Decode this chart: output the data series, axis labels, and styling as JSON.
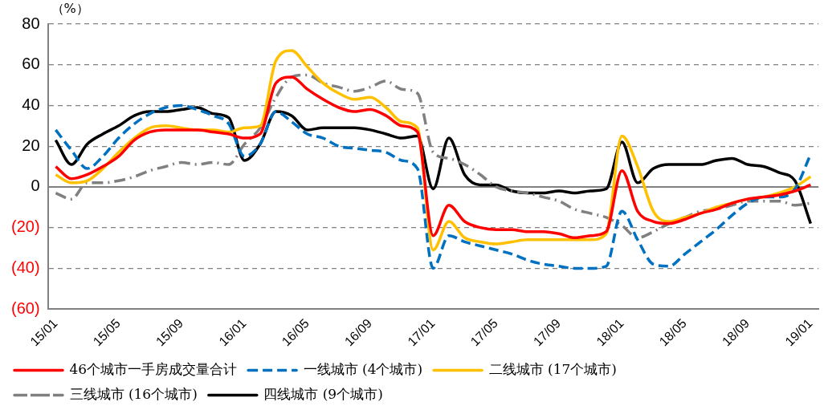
{
  "chart_data": {
    "type": "line",
    "ylabel": "（%）",
    "categories": [
      "15/01",
      null,
      null,
      null,
      "15/05",
      null,
      null,
      null,
      "15/09",
      null,
      null,
      null,
      "16/01",
      null,
      null,
      null,
      "16/05",
      null,
      null,
      null,
      "16/09",
      null,
      null,
      null,
      "17/01",
      null,
      null,
      null,
      "17/05",
      null,
      null,
      null,
      "17/09",
      null,
      null,
      null,
      "18/01",
      null,
      null,
      null,
      "18/05",
      null,
      null,
      null,
      "18/09",
      null,
      null,
      null,
      "19/01"
    ],
    "ylim": [
      -60,
      80
    ],
    "yticks": [
      {
        "value": -60,
        "label": "(60)"
      },
      {
        "value": -40,
        "label": "(40)"
      },
      {
        "value": -20,
        "label": "(20)"
      },
      0,
      20,
      40,
      60,
      80
    ],
    "grid": "y",
    "legend": "bottom",
    "marker": "none",
    "series": [
      {
        "name": "46个城市一手房成交量合计",
        "color": "#ff0000",
        "line_style": "solid",
        "values": [
          10,
          4,
          6,
          10,
          15,
          23,
          27,
          28,
          28,
          28,
          27,
          26,
          24,
          26,
          51,
          54,
          48,
          43,
          39,
          37,
          38,
          35,
          30,
          27,
          -24,
          -9,
          -17,
          -20,
          -21,
          -21,
          -22,
          -22,
          -23,
          -25,
          -24,
          -22,
          8,
          -12,
          -17,
          -18,
          -16,
          -13,
          -11,
          -8,
          -6,
          -5,
          -4,
          -2,
          1
        ]
      },
      {
        "name": "一线城市 (4个城市)",
        "color": "#0070c0",
        "line_style": "dashed",
        "values": [
          28,
          18,
          9,
          15,
          24,
          31,
          36,
          39,
          40,
          38,
          35,
          31,
          15,
          21,
          37,
          32,
          26,
          24,
          20,
          19,
          18,
          17,
          13,
          9,
          -40,
          -24,
          -27,
          -29,
          -31,
          -33,
          -36,
          -38,
          -39,
          -40,
          -40,
          -39,
          -12,
          -26,
          -38,
          -39,
          -33,
          -27,
          -21,
          -14,
          -8,
          -5,
          -5,
          -1,
          16
        ]
      },
      {
        "name": "二线城市 (17个城市)",
        "color": "#ffc000",
        "line_style": "solid",
        "values": [
          6,
          2,
          3,
          9,
          17,
          24,
          29,
          30,
          29,
          28,
          28,
          27,
          29,
          30,
          62,
          67,
          59,
          51,
          46,
          43,
          44,
          39,
          32,
          29,
          -31,
          -17,
          -25,
          -27,
          -28,
          -27,
          -26,
          -26,
          -26,
          -26,
          -26,
          -23,
          25,
          10,
          -12,
          -17,
          -15,
          -13,
          -10,
          -8,
          -6,
          -5,
          -3,
          0,
          5
        ]
      },
      {
        "name": "三线城市 (16个城市)",
        "color": "#808080",
        "line_style": "dashdot",
        "values": [
          -3,
          -6,
          2,
          2,
          3,
          5,
          8,
          10,
          12,
          11,
          12,
          11,
          21,
          29,
          44,
          54,
          55,
          51,
          49,
          47,
          49,
          52,
          48,
          46,
          17,
          14,
          11,
          6,
          0,
          -2,
          -3,
          -5,
          -7,
          -11,
          -13,
          -15,
          -19,
          -25,
          -22,
          -18,
          -15,
          -12,
          -11,
          -9,
          -7,
          -7,
          -7,
          -9,
          -8
        ]
      },
      {
        "name": "四线城市 (9个城市)",
        "color": "#000000",
        "line_style": "solid",
        "values": [
          23,
          11,
          21,
          26,
          30,
          35,
          37,
          37,
          38,
          39,
          36,
          34,
          13,
          21,
          37,
          35,
          28,
          29,
          29,
          29,
          28,
          26,
          24,
          25,
          -1,
          24,
          6,
          1,
          1,
          -2,
          -3,
          -3,
          -2,
          -3,
          -2,
          -1,
          22,
          2,
          9,
          11,
          11,
          11,
          13,
          14,
          11,
          10,
          7,
          3,
          -18
        ]
      }
    ]
  }
}
